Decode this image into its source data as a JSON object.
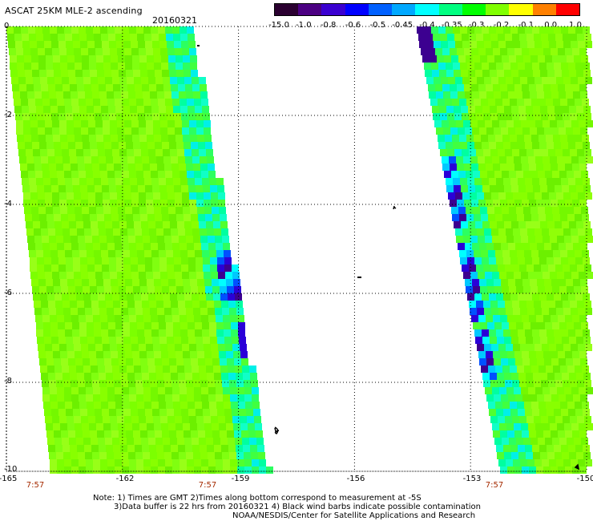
{
  "title": "ASCAT 25KM MLE-2 ascending",
  "date": "20160321",
  "colorbar": {
    "labels": [
      "-15.0",
      "-1.0",
      "-0.8",
      "-0.6",
      "-0.5",
      "-0.45",
      "-0.4",
      "-0.35",
      "-0.3",
      "-0.2",
      "-0.1",
      "0.0",
      "1.0"
    ],
    "colors": [
      "#2a0030",
      "#4b0082",
      "#3a00d0",
      "#0000ff",
      "#0060ff",
      "#00a8ff",
      "#00ffff",
      "#00ff80",
      "#00ff00",
      "#80ff00",
      "#ffff00",
      "#ff8000",
      "#ff0000"
    ]
  },
  "axes": {
    "lat_ticks": [
      "0",
      "-2",
      "-4",
      "-6",
      "-8",
      "-10"
    ],
    "lon_ticks": [
      "-165",
      "-162",
      "-159",
      "-156",
      "-153",
      "-150"
    ],
    "lon_range": [
      -165,
      -150
    ],
    "lat_range": [
      -10,
      0
    ]
  },
  "times": [
    "7:57",
    "7:57",
    "7:57"
  ],
  "notes": [
    "Note: 1) Times are GMT 2)Times along bottom correspond to measurement at -5S",
    "3)Data buffer is 22 hrs from 20160321 4) Black wind barbs indicate possible contamination",
    "NOAA/NESDIS/Center for Satellite Applications and Research"
  ]
}
